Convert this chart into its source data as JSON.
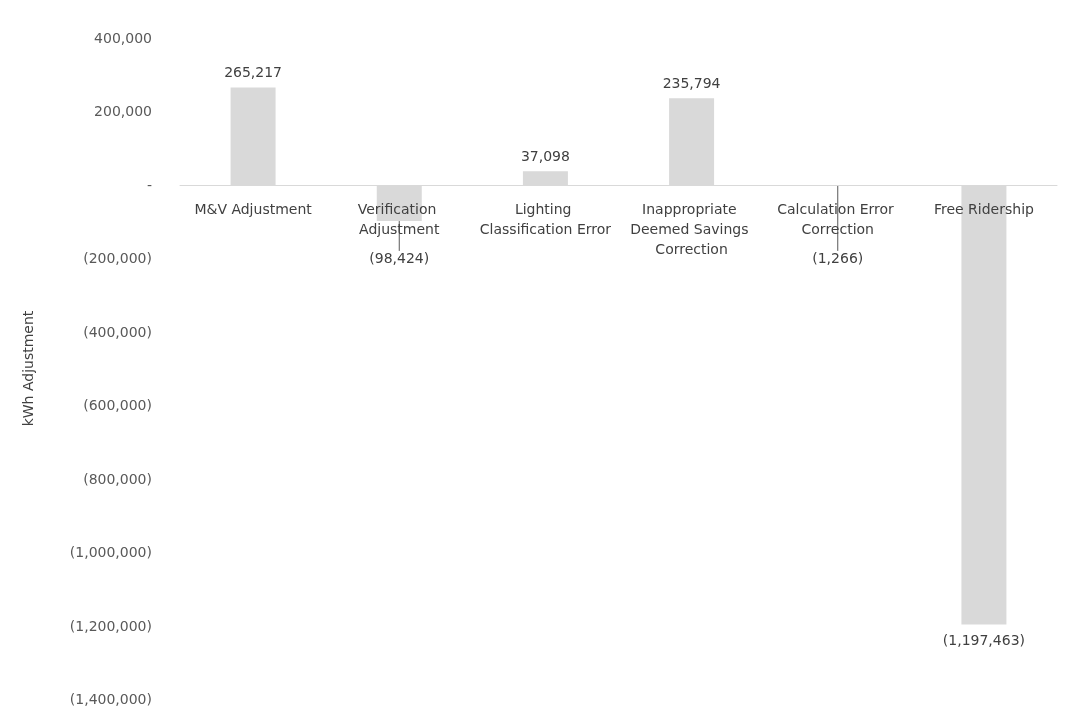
{
  "chart_data": {
    "type": "bar",
    "ylabel": "kWh Adjustment",
    "categories": [
      "M&V Adjustment",
      "Verification Adjustment",
      "Lighting Classification Error",
      "Inappropriate Deemed Savings Correction",
      "Calculation Error Correction",
      "Free Ridership"
    ],
    "values": [
      265217,
      -98424,
      37098,
      235794,
      -1266,
      -1197463
    ],
    "value_labels": [
      "265,217",
      "(98,424)",
      "37,098",
      "235,794",
      "(1,266)",
      "(1,197,463)"
    ],
    "color": "#d9d9d9",
    "ylim": [
      -1400000,
      400000
    ],
    "yticks": [
      {
        "value": 400000,
        "label": "400,000"
      },
      {
        "value": 200000,
        "label": "200,000"
      },
      {
        "value": 0,
        "label": "-"
      },
      {
        "value": -200000,
        "label": "(200,000)"
      },
      {
        "value": -400000,
        "label": "(400,000)"
      },
      {
        "value": -600000,
        "label": "(600,000)"
      },
      {
        "value": -800000,
        "label": "(800,000)"
      },
      {
        "value": -1000000,
        "label": "(1,000,000)"
      },
      {
        "value": -1200000,
        "label": "(1,200,000)"
      },
      {
        "value": -1400000,
        "label": "(1,400,000)"
      }
    ],
    "grid": false
  }
}
